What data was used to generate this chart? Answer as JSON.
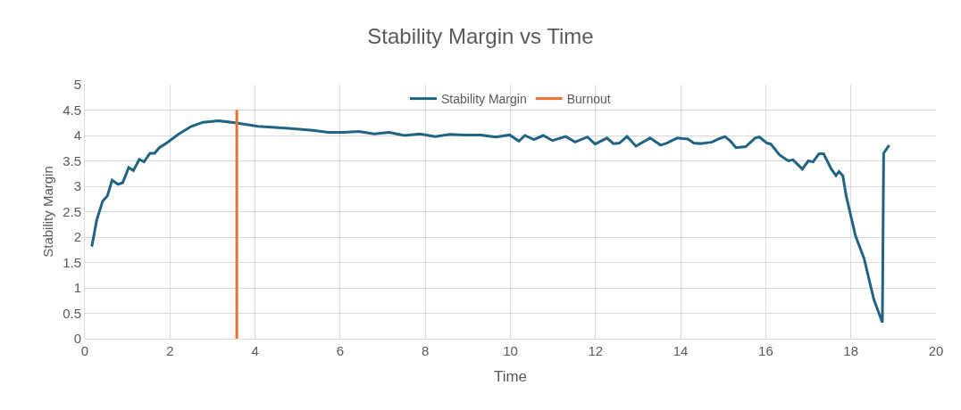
{
  "chart_data": {
    "type": "line",
    "title": "Stability Margin vs Time",
    "xlabel": "Time",
    "ylabel": "Stability Margin",
    "series": [
      {
        "name": "Stability Margin",
        "color": "#1f6482",
        "x": [
          0.15,
          0.17,
          0.28,
          0.42,
          0.53,
          0.64,
          0.78,
          0.89,
          1.03,
          1.14,
          1.28,
          1.39,
          1.53,
          1.64,
          1.75,
          1.92,
          2.21,
          2.5,
          2.78,
          3.14,
          3.53,
          4.07,
          4.79,
          5.36,
          5.72,
          6.08,
          6.44,
          6.8,
          7.15,
          7.51,
          7.87,
          8.23,
          8.58,
          8.94,
          9.3,
          9.66,
          9.98,
          10.2,
          10.34,
          10.55,
          10.77,
          10.99,
          11.3,
          11.52,
          11.81,
          11.99,
          12.27,
          12.42,
          12.56,
          12.74,
          12.95,
          13.28,
          13.53,
          13.67,
          13.92,
          14.17,
          14.31,
          14.46,
          14.74,
          14.89,
          15.04,
          15.17,
          15.3,
          15.53,
          15.75,
          15.85,
          16.03,
          16.12,
          16.32,
          16.53,
          16.64,
          16.86,
          17.0,
          17.11,
          17.25,
          17.36,
          17.54,
          17.65,
          17.72,
          17.81,
          17.89,
          18.11,
          18.31,
          18.54,
          18.74,
          18.77,
          18.9
        ],
        "values": [
          1.82,
          1.84,
          2.34,
          2.71,
          2.81,
          3.12,
          3.04,
          3.07,
          3.37,
          3.31,
          3.53,
          3.48,
          3.65,
          3.65,
          3.76,
          3.85,
          4.03,
          4.18,
          4.26,
          4.29,
          4.25,
          4.18,
          4.14,
          4.1,
          4.06,
          4.06,
          4.08,
          4.03,
          4.06,
          4.0,
          4.03,
          3.98,
          4.02,
          4.01,
          4.01,
          3.97,
          4.01,
          3.89,
          4.0,
          3.92,
          4.0,
          3.9,
          3.98,
          3.87,
          3.97,
          3.83,
          3.95,
          3.84,
          3.85,
          3.98,
          3.79,
          3.95,
          3.81,
          3.85,
          3.95,
          3.93,
          3.85,
          3.84,
          3.87,
          3.93,
          3.98,
          3.89,
          3.76,
          3.78,
          3.95,
          3.97,
          3.85,
          3.83,
          3.62,
          3.5,
          3.52,
          3.34,
          3.5,
          3.48,
          3.64,
          3.64,
          3.34,
          3.21,
          3.29,
          3.21,
          2.81,
          2.02,
          1.58,
          0.77,
          0.32,
          3.65,
          3.81
        ]
      },
      {
        "name": "Burnout",
        "color": "#e97132",
        "x": [
          3.57,
          3.57
        ],
        "values": [
          0,
          4.5
        ]
      }
    ],
    "xlim": [
      0,
      20
    ],
    "xticks": [
      0,
      2,
      4,
      6,
      8,
      10,
      12,
      14,
      16,
      18,
      20
    ],
    "ylim": [
      0,
      5
    ],
    "yticks": [
      0,
      0.5,
      1,
      1.5,
      2,
      2.5,
      3,
      3.5,
      4,
      4.5,
      5
    ],
    "grid": true,
    "legend": "top"
  }
}
